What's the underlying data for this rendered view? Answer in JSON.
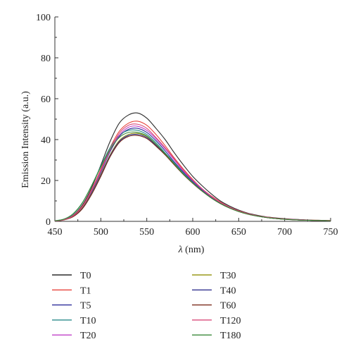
{
  "chart_data": {
    "type": "line",
    "title": "",
    "xlabel_var": "λ",
    "xlabel_unit": " (nm)",
    "ylabel": "Emission Intensity (a.u.)",
    "xlim": [
      450,
      750
    ],
    "ylim": [
      0,
      100
    ],
    "xticks": [
      450,
      500,
      550,
      600,
      650,
      700,
      750
    ],
    "yticks": [
      0,
      20,
      40,
      60,
      80,
      100
    ],
    "grid": false,
    "legend_position": "bottom",
    "x": [
      450,
      460,
      470,
      480,
      490,
      500,
      510,
      520,
      530,
      540,
      550,
      560,
      570,
      580,
      590,
      600,
      610,
      620,
      630,
      640,
      650,
      660,
      670,
      680,
      690,
      700,
      710,
      720,
      730,
      740,
      750
    ],
    "series": [
      {
        "name": "T0",
        "color": "#2b2b2b",
        "values": [
          0.2,
          0.9,
          3.0,
          8.0,
          16.5,
          27.5,
          39.0,
          48.0,
          52.0,
          53.0,
          50.5,
          45.5,
          40.0,
          33.5,
          27.5,
          22.0,
          17.5,
          13.5,
          10.0,
          7.5,
          5.5,
          4.0,
          3.0,
          2.2,
          1.7,
          1.3,
          1.0,
          0.8,
          0.6,
          0.5,
          0.4
        ]
      },
      {
        "name": "T1",
        "color": "#e8453c",
        "values": [
          0.2,
          0.8,
          2.8,
          7.5,
          15.5,
          25.5,
          36.0,
          44.0,
          48.0,
          49.0,
          47.0,
          42.5,
          37.0,
          31.0,
          25.5,
          20.5,
          16.0,
          12.5,
          9.5,
          7.0,
          5.2,
          3.8,
          2.8,
          2.1,
          1.6,
          1.2,
          0.9,
          0.7,
          0.6,
          0.5,
          0.4
        ]
      },
      {
        "name": "T5",
        "color": "#2d2d9a",
        "values": [
          0.2,
          0.8,
          2.6,
          7.0,
          14.5,
          24.0,
          34.0,
          41.5,
          45.0,
          45.5,
          43.5,
          39.5,
          34.5,
          29.0,
          24.0,
          19.5,
          15.5,
          12.0,
          9.0,
          6.8,
          5.0,
          3.7,
          2.7,
          2.0,
          1.5,
          1.1,
          0.9,
          0.7,
          0.5,
          0.4,
          0.3
        ]
      },
      {
        "name": "T10",
        "color": "#2a8b8b",
        "values": [
          0.3,
          1.1,
          3.6,
          9.0,
          17.5,
          27.0,
          36.0,
          42.0,
          44.5,
          44.5,
          42.5,
          38.5,
          33.5,
          28.5,
          23.5,
          19.0,
          15.0,
          11.5,
          8.8,
          6.6,
          4.9,
          3.6,
          2.6,
          1.9,
          1.4,
          1.1,
          0.8,
          0.6,
          0.5,
          0.4,
          0.3
        ]
      },
      {
        "name": "T20",
        "color": "#c040c8",
        "values": [
          0.2,
          0.8,
          2.7,
          7.2,
          15.0,
          24.5,
          34.5,
          42.0,
          46.0,
          46.5,
          44.5,
          40.5,
          35.5,
          30.0,
          24.5,
          20.0,
          15.8,
          12.2,
          9.2,
          6.9,
          5.1,
          3.7,
          2.7,
          2.0,
          1.5,
          1.1,
          0.9,
          0.7,
          0.5,
          0.4,
          0.3
        ]
      },
      {
        "name": "T30",
        "color": "#9a9a1c",
        "values": [
          0.2,
          0.8,
          2.5,
          6.6,
          13.8,
          23.0,
          32.5,
          39.5,
          42.5,
          43.0,
          41.5,
          37.5,
          33.0,
          28.0,
          23.0,
          18.8,
          15.0,
          11.6,
          8.8,
          6.6,
          4.9,
          3.6,
          2.6,
          1.9,
          1.4,
          1.1,
          0.8,
          0.6,
          0.5,
          0.4,
          0.3
        ]
      },
      {
        "name": "T40",
        "color": "#33338f",
        "values": [
          0.2,
          0.8,
          2.4,
          6.4,
          13.5,
          22.5,
          32.0,
          39.0,
          42.0,
          42.5,
          41.0,
          37.2,
          32.8,
          27.8,
          23.0,
          18.8,
          15.0,
          11.6,
          8.8,
          6.6,
          4.9,
          3.6,
          2.6,
          1.9,
          1.4,
          1.1,
          0.8,
          0.6,
          0.5,
          0.4,
          0.3
        ]
      },
      {
        "name": "T60",
        "color": "#7a2a1a",
        "values": [
          0.2,
          0.7,
          2.3,
          6.2,
          13.2,
          22.0,
          31.5,
          38.5,
          41.5,
          42.0,
          40.5,
          36.8,
          32.5,
          27.6,
          22.8,
          18.6,
          14.8,
          11.5,
          8.7,
          6.5,
          4.8,
          3.5,
          2.6,
          1.9,
          1.4,
          1.0,
          0.8,
          0.6,
          0.5,
          0.4,
          0.3
        ]
      },
      {
        "name": "T120",
        "color": "#d94a7a",
        "values": [
          0.2,
          0.8,
          2.7,
          7.3,
          15.2,
          25.0,
          35.0,
          43.0,
          47.0,
          47.5,
          45.5,
          41.0,
          36.0,
          30.5,
          25.0,
          20.2,
          16.0,
          12.3,
          9.3,
          7.0,
          5.1,
          3.7,
          2.7,
          2.0,
          1.5,
          1.1,
          0.9,
          0.7,
          0.5,
          0.4,
          0.3
        ]
      },
      {
        "name": "T180",
        "color": "#3a8a3a",
        "values": [
          0.3,
          1.1,
          3.8,
          9.2,
          17.5,
          26.5,
          35.0,
          41.0,
          43.5,
          43.5,
          41.8,
          37.8,
          33.0,
          28.0,
          23.0,
          18.8,
          14.9,
          11.5,
          8.7,
          6.5,
          4.8,
          3.5,
          2.6,
          1.9,
          1.4,
          1.0,
          0.8,
          0.6,
          0.5,
          0.4,
          0.3
        ]
      }
    ]
  }
}
